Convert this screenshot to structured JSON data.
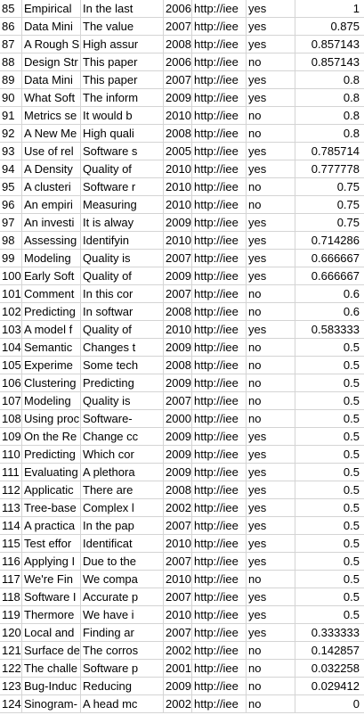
{
  "sheet": {
    "rows": [
      {
        "id": "85",
        "title": "Empirical",
        "abstract": "In the last",
        "year": "2006",
        "link": "http://iee",
        "flag": "yes",
        "score": "1"
      },
      {
        "id": "86",
        "title": "Data Mini",
        "abstract": "The value",
        "year": "2007",
        "link": "http://iee",
        "flag": "yes",
        "score": "0.875"
      },
      {
        "id": "87",
        "title": "A Rough S",
        "abstract": "High assur",
        "year": "2008",
        "link": "http://iee",
        "flag": "yes",
        "score": "0.857143"
      },
      {
        "id": "88",
        "title": "Design Str",
        "abstract": "This paper",
        "year": "2006",
        "link": "http://iee",
        "flag": "no",
        "score": "0.857143"
      },
      {
        "id": "89",
        "title": "Data Mini",
        "abstract": "This paper",
        "year": "2007",
        "link": "http://iee",
        "flag": "yes",
        "score": "0.8"
      },
      {
        "id": "90",
        "title": "What Soft",
        "abstract": "The inform",
        "year": "2009",
        "link": "http://iee",
        "flag": "yes",
        "score": "0.8"
      },
      {
        "id": "91",
        "title": "Metrics se",
        "abstract": "It would b",
        "year": "2010",
        "link": "http://iee",
        "flag": "no",
        "score": "0.8"
      },
      {
        "id": "92",
        "title": "A New Me",
        "abstract": "High quali",
        "year": "2008",
        "link": "http://iee",
        "flag": "no",
        "score": "0.8"
      },
      {
        "id": "93",
        "title": "Use of rel",
        "abstract": "Software s",
        "year": "2005",
        "link": "http://iee",
        "flag": "yes",
        "score": "0.785714"
      },
      {
        "id": "94",
        "title": "A Density",
        "abstract": "Quality of",
        "year": "2010",
        "link": "http://iee",
        "flag": "yes",
        "score": "0.777778"
      },
      {
        "id": "95",
        "title": "A clusteri",
        "abstract": "Software r",
        "year": "2010",
        "link": "http://iee",
        "flag": "no",
        "score": "0.75"
      },
      {
        "id": "96",
        "title": "An empiri",
        "abstract": "Measuring",
        "year": "2010",
        "link": "http://iee",
        "flag": "no",
        "score": "0.75"
      },
      {
        "id": "97",
        "title": "An investi",
        "abstract": "It is alway",
        "year": "2009",
        "link": "http://iee",
        "flag": "yes",
        "score": "0.75"
      },
      {
        "id": "98",
        "title": "Assessing",
        "abstract": "Identifyin",
        "year": "2010",
        "link": "http://iee",
        "flag": "yes",
        "score": "0.714286"
      },
      {
        "id": "99",
        "title": "Modeling",
        "abstract": "Quality is",
        "year": "2007",
        "link": "http://iee",
        "flag": "yes",
        "score": "0.666667"
      },
      {
        "id": "100",
        "title": "Early Soft",
        "abstract": "Quality of",
        "year": "2009",
        "link": "http://iee",
        "flag": "yes",
        "score": "0.666667"
      },
      {
        "id": "101",
        "title": "Comment",
        "abstract": "In this cor",
        "year": "2007",
        "link": "http://iee",
        "flag": "no",
        "score": "0.6"
      },
      {
        "id": "102",
        "title": "Predicting",
        "abstract": "In softwar",
        "year": "2008",
        "link": "http://iee",
        "flag": "no",
        "score": "0.6"
      },
      {
        "id": "103",
        "title": "A model f",
        "abstract": "Quality of",
        "year": "2010",
        "link": "http://iee",
        "flag": "yes",
        "score": "0.583333"
      },
      {
        "id": "104",
        "title": "Semantic",
        "abstract": "Changes t",
        "year": "2009",
        "link": "http://iee",
        "flag": "no",
        "score": "0.5"
      },
      {
        "id": "105",
        "title": "Experime",
        "abstract": "Some tech",
        "year": "2008",
        "link": "http://iee",
        "flag": "no",
        "score": "0.5"
      },
      {
        "id": "106",
        "title": "Clustering",
        "abstract": "Predicting",
        "year": "2009",
        "link": "http://iee",
        "flag": "no",
        "score": "0.5"
      },
      {
        "id": "107",
        "title": "Modeling",
        "abstract": "Quality is",
        "year": "2007",
        "link": "http://iee",
        "flag": "no",
        "score": "0.5"
      },
      {
        "id": "108",
        "title": "Using proc",
        "abstract": "Software-",
        "year": "2000",
        "link": "http://iee",
        "flag": "no",
        "score": "0.5"
      },
      {
        "id": "109",
        "title": "On the Re",
        "abstract": "Change cc",
        "year": "2009",
        "link": "http://iee",
        "flag": "yes",
        "score": "0.5"
      },
      {
        "id": "110",
        "title": "Predicting",
        "abstract": "Which cor",
        "year": "2009",
        "link": "http://iee",
        "flag": "yes",
        "score": "0.5"
      },
      {
        "id": "111",
        "title": "Evaluating",
        "abstract": "A plethora",
        "year": "2009",
        "link": "http://iee",
        "flag": "yes",
        "score": "0.5"
      },
      {
        "id": "112",
        "title": "Applicatic",
        "abstract": "There are",
        "year": "2008",
        "link": "http://iee",
        "flag": "yes",
        "score": "0.5"
      },
      {
        "id": "113",
        "title": "Tree-base",
        "abstract": "Complex l",
        "year": "2002",
        "link": "http://iee",
        "flag": "yes",
        "score": "0.5"
      },
      {
        "id": "114",
        "title": "A practica",
        "abstract": "In the pap",
        "year": "2007",
        "link": "http://iee",
        "flag": "yes",
        "score": "0.5"
      },
      {
        "id": "115",
        "title": "Test effor",
        "abstract": "Identificat",
        "year": "2010",
        "link": "http://iee",
        "flag": "yes",
        "score": "0.5"
      },
      {
        "id": "116",
        "title": "Applying I",
        "abstract": "Due to the",
        "year": "2007",
        "link": "http://iee",
        "flag": "yes",
        "score": "0.5"
      },
      {
        "id": "117",
        "title": "We're Fin",
        "abstract": "We compa",
        "year": "2010",
        "link": "http://iee",
        "flag": "no",
        "score": "0.5"
      },
      {
        "id": "118",
        "title": "Software I",
        "abstract": "Accurate p",
        "year": "2007",
        "link": "http://iee",
        "flag": "yes",
        "score": "0.5"
      },
      {
        "id": "119",
        "title": "Thermore",
        "abstract": "We have i",
        "year": "2010",
        "link": "http://iee",
        "flag": "yes",
        "score": "0.5"
      },
      {
        "id": "120",
        "title": "Local and",
        "abstract": "Finding ar",
        "year": "2007",
        "link": "http://iee",
        "flag": "yes",
        "score": "0.333333"
      },
      {
        "id": "121",
        "title": "Surface de",
        "abstract": "The corros",
        "year": "2002",
        "link": "http://iee",
        "flag": "no",
        "score": "0.142857"
      },
      {
        "id": "122",
        "title": "The challe",
        "abstract": "Software p",
        "year": "2001",
        "link": "http://iee",
        "flag": "no",
        "score": "0.032258"
      },
      {
        "id": "123",
        "title": "Bug-Induc",
        "abstract": "Reducing",
        "year": "2009",
        "link": "http://iee",
        "flag": "no",
        "score": "0.029412"
      },
      {
        "id": "124",
        "title": "Sinogram-",
        "abstract": "A head mc",
        "year": "2002",
        "link": "http://iee",
        "flag": "no",
        "score": "0"
      }
    ]
  }
}
